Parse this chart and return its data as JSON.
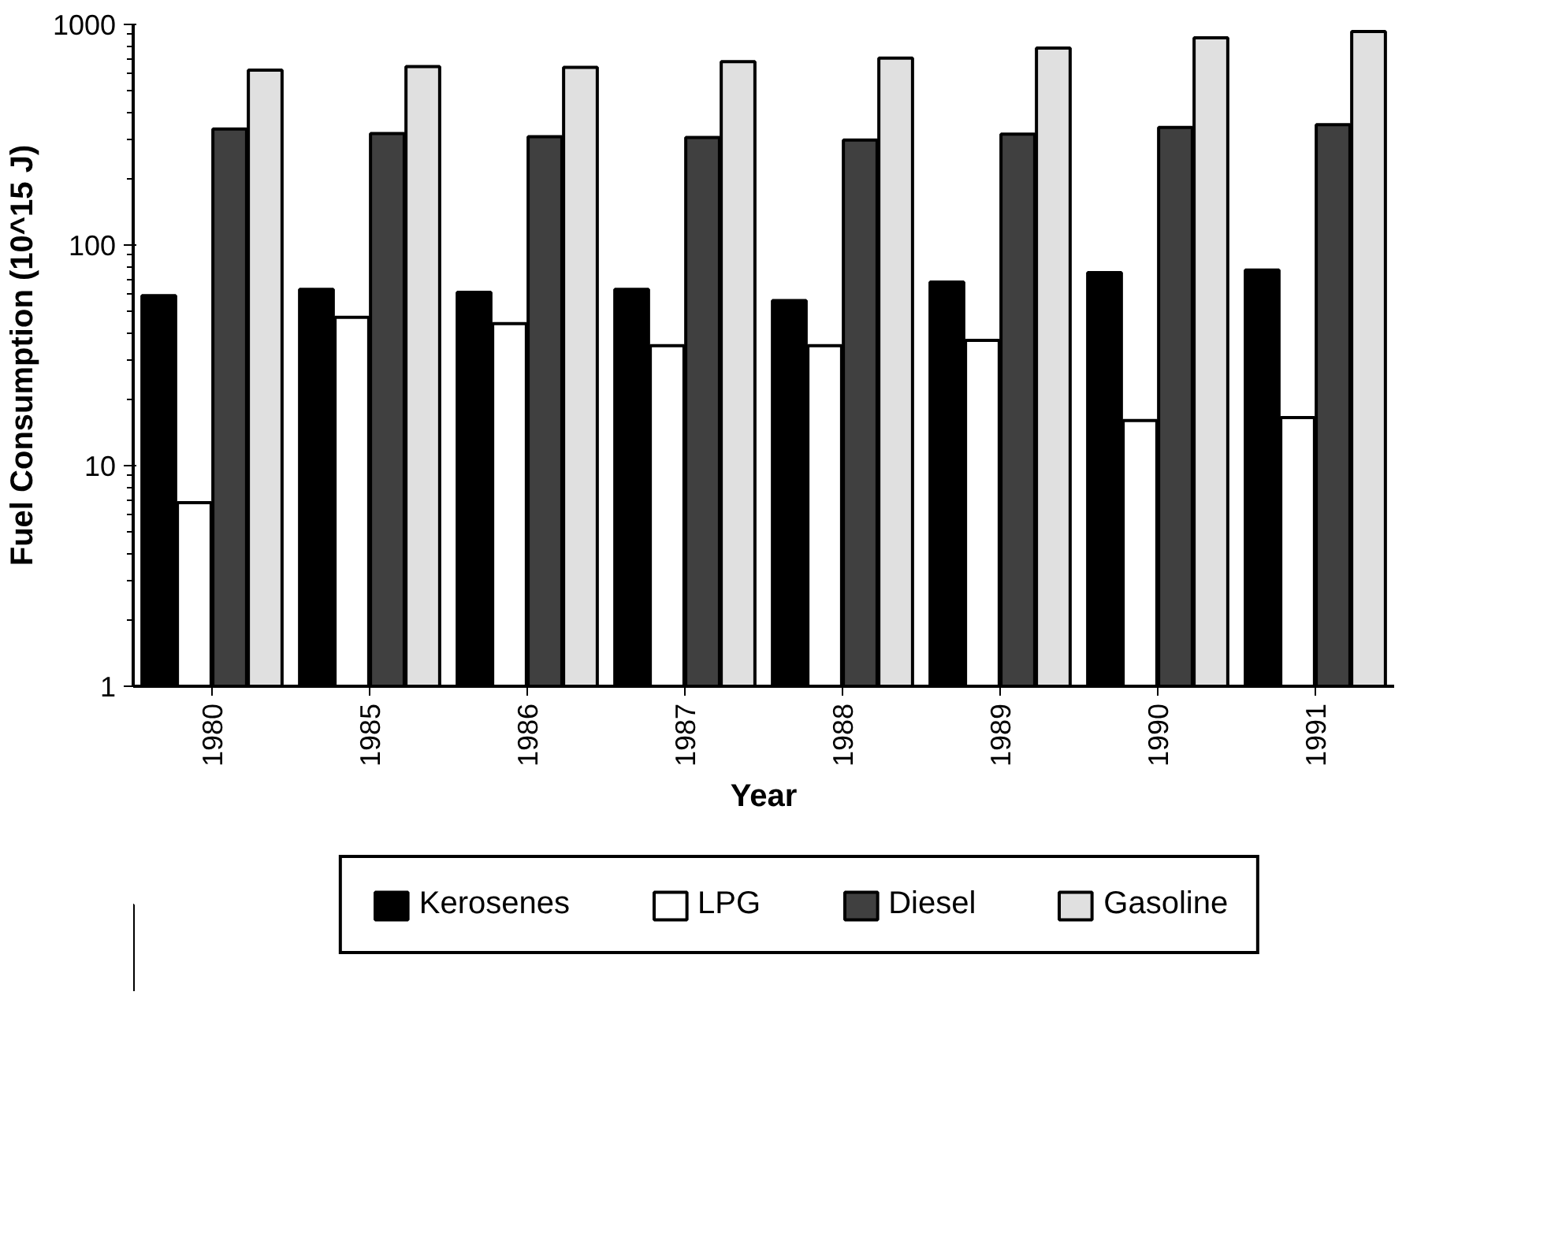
{
  "chart_data": {
    "type": "bar",
    "xlabel": "Year",
    "ylabel": "Fuel Consumption (10^15 J)",
    "categories": [
      "1980",
      "1985",
      "1986",
      "1987",
      "1988",
      "1989",
      "1990",
      "1991"
    ],
    "series": [
      {
        "name": "Kerosenes",
        "color": "#000000",
        "values": [
          59,
          63,
          61,
          63,
          56,
          68,
          75,
          77
        ]
      },
      {
        "name": "LPG",
        "color": "#ffffff",
        "values": [
          6.8,
          47,
          44,
          35,
          35,
          37,
          16,
          16.5
        ]
      },
      {
        "name": "Diesel",
        "color": "#404040",
        "values": [
          336,
          320,
          310,
          307,
          299,
          318,
          341,
          351
        ]
      },
      {
        "name": "Gasoline",
        "color": "#e0e0e0",
        "values": [
          621,
          644,
          639,
          678,
          704,
          781,
          869,
          929
        ]
      }
    ],
    "log": true,
    "ylim": [
      1,
      1000
    ],
    "yticks": [
      1,
      10,
      100,
      1000
    ],
    "grid": false,
    "legend": "bottom"
  }
}
